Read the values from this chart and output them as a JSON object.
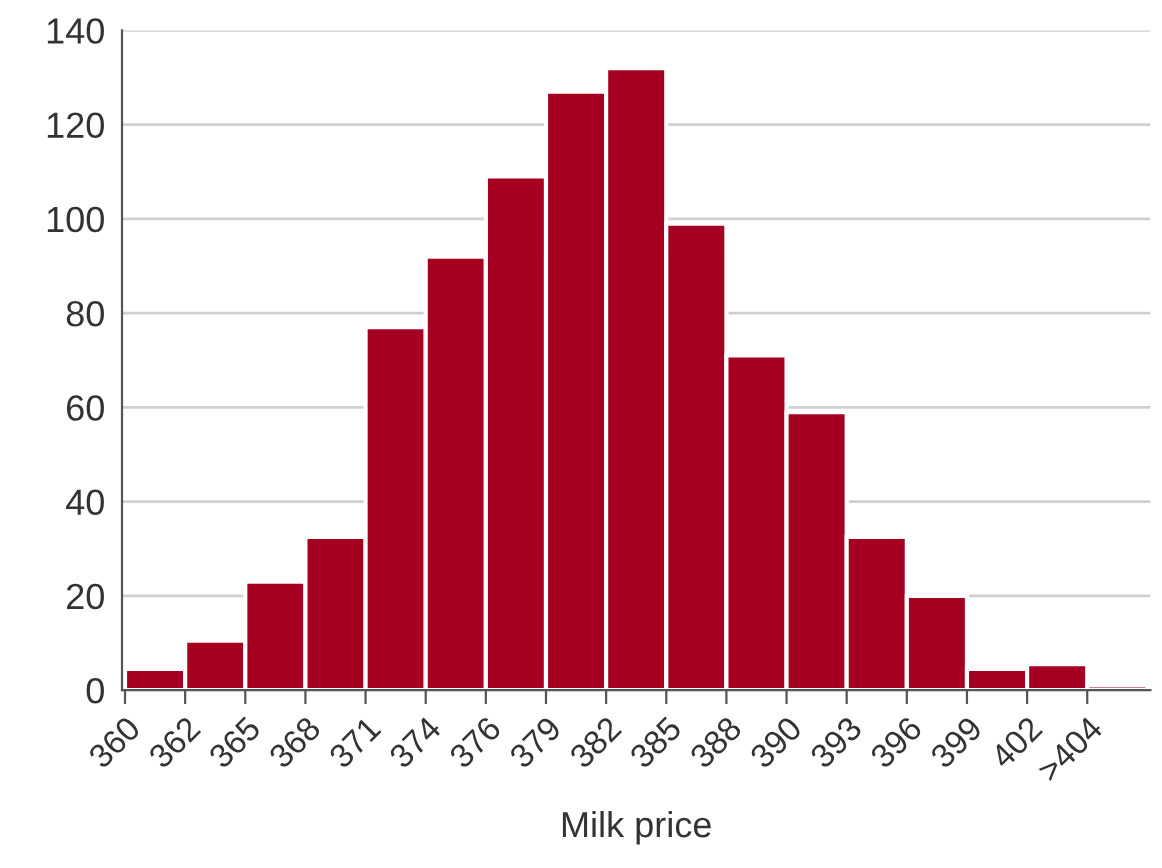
{
  "chart_data": {
    "type": "bar",
    "xlabel": "Milk price",
    "categories": [
      "360",
      "362",
      "365",
      "368",
      "371",
      "374",
      "376",
      "379",
      "382",
      "385",
      "388",
      "390",
      "393",
      "396",
      "399",
      "402",
      ">404"
    ],
    "values": [
      4.5,
      10.5,
      23,
      32.5,
      77,
      92,
      109,
      127,
      132,
      99,
      71,
      59,
      32.5,
      20,
      4.5,
      5.5,
      1
    ],
    "color": "#a50021",
    "ylim": [
      0,
      140
    ],
    "yticks": [
      0,
      20,
      40,
      60,
      80,
      100,
      120,
      140
    ],
    "grid": "y"
  }
}
